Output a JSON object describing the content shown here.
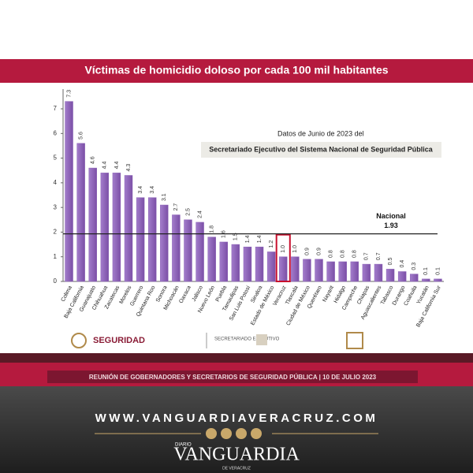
{
  "chart_data": {
    "type": "bar",
    "title": "Víctimas de homicidio doloso por cada 100 mil habitantes",
    "categories": [
      "Colima",
      "Baja California",
      "Guanajuato",
      "Chihuahua",
      "Zacatecas",
      "Morelos",
      "Guerrero",
      "Quintana Roo",
      "Sonora",
      "Michoacán",
      "Oaxaca",
      "Jalisco",
      "Nuevo León",
      "Puebla",
      "Tamaulipas",
      "San Luis Potosí",
      "Sinaloa",
      "Estado de México",
      "Veracruz",
      "Tlaxcala",
      "Ciudad de México",
      "Querétaro",
      "Nayarit",
      "Hidalgo",
      "Campeche",
      "Chiapas",
      "Aguascalientes",
      "Tabasco",
      "Durango",
      "Coahuila",
      "Yucatán",
      "Baja California Sur"
    ],
    "values": [
      7.3,
      5.6,
      4.6,
      4.4,
      4.4,
      4.3,
      3.4,
      3.4,
      3.1,
      2.7,
      2.5,
      2.4,
      1.8,
      1.6,
      1.5,
      1.4,
      1.4,
      1.2,
      1.0,
      1.0,
      0.9,
      0.9,
      0.8,
      0.8,
      0.8,
      0.7,
      0.7,
      0.5,
      0.4,
      0.3,
      0.1,
      0.1
    ],
    "value_labels": [
      "7.3",
      "5.6",
      "4.6",
      "4.4",
      "4.4",
      "4.3",
      "3.4",
      "3.4",
      "3.1",
      "2.7",
      "2.5",
      "2.4",
      "1.8",
      "1.6",
      "1.5",
      "1.4",
      "1.4",
      "1.2",
      "1.0",
      "1.0",
      "0.9",
      "0.9",
      "0.8",
      "0.8",
      "0.8",
      "0.7",
      "0.7",
      "0.5",
      "0.4",
      "0.3",
      "0.1",
      "0.1"
    ],
    "color": "#8f66b9",
    "highlight_color": "#c8102e",
    "highlight": "Veracruz",
    "ylim": [
      0,
      7.8
    ],
    "yticks": [
      0,
      1,
      2,
      3,
      4,
      5,
      6,
      7
    ],
    "reference": {
      "value": 1.93,
      "label": "Nacional"
    },
    "annotations": [
      "Datos  de Junio de 2023 del",
      "Secretariado Ejecutivo del Sistema Nacional de Seguridad Pública"
    ]
  },
  "branding": {
    "logo_left": "SEGURIDAD",
    "logo_center": "SECRETARIADO EJECUTIVO",
    "meeting": "REUNIÓN DE GOBERNADORES Y SECRETARIOS DE SEGURIDAD PÚBLICA | 10 DE JULIO 2023",
    "website": "WWW.VANGUARDIAVERACRUZ.COM",
    "diario": "DIARIO",
    "brand": "VANGUARDIA",
    "brand_sub": "DE VERACRUZ"
  }
}
